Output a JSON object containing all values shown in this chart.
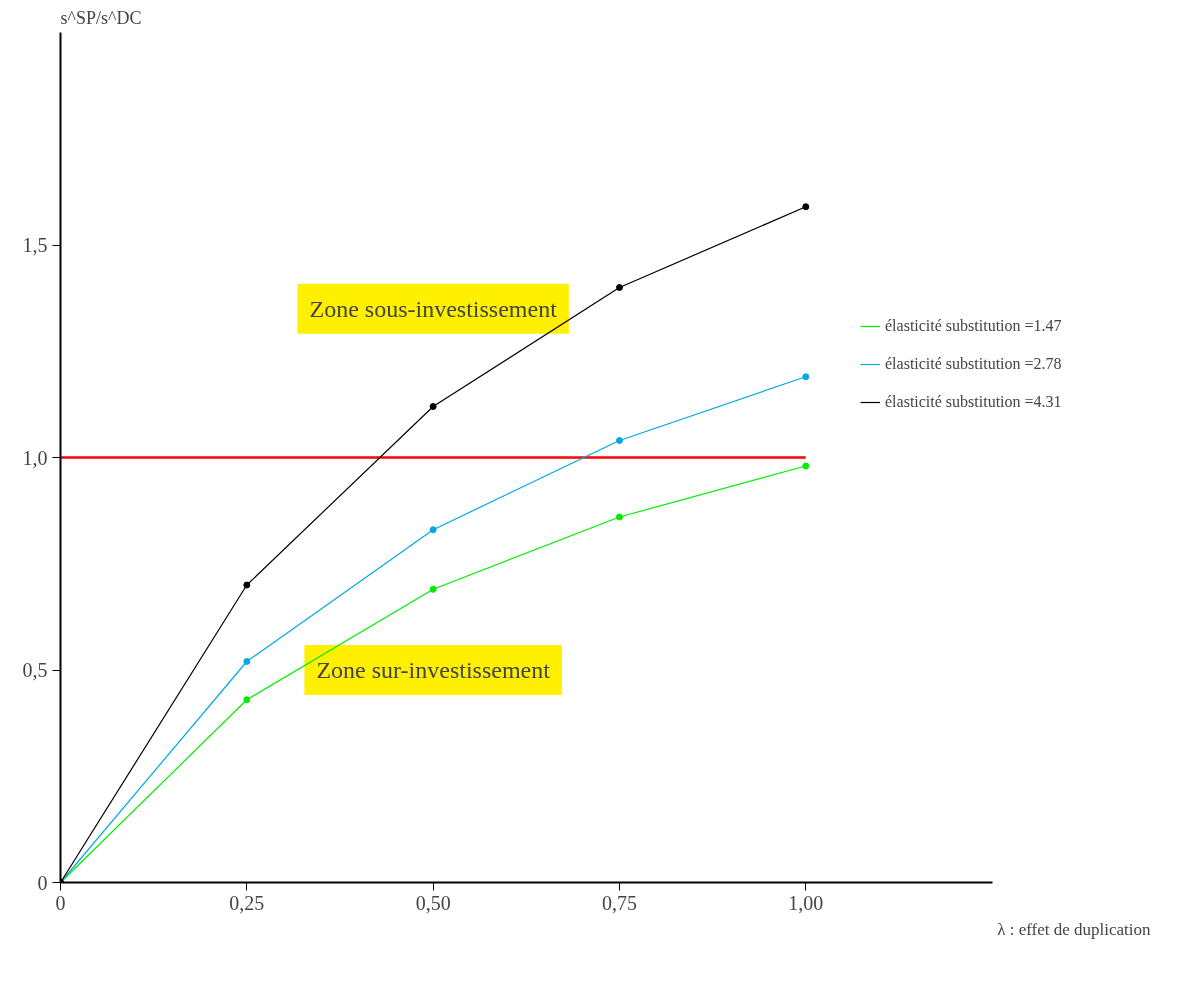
{
  "chart_data": {
    "type": "line",
    "xlabel": "λ : effet de duplication",
    "ylabel": "s^SP/s^DC",
    "x": [
      0,
      0.25,
      0.5,
      0.75,
      1.0
    ],
    "series": [
      {
        "name": "élasticité substitution =1.47",
        "color": "#00ee00",
        "values": [
          0,
          0.43,
          0.69,
          0.86,
          0.98
        ]
      },
      {
        "name": "élasticité substitution =2.78",
        "color": "#00a8e8",
        "values": [
          0,
          0.52,
          0.83,
          1.04,
          1.19
        ]
      },
      {
        "name": "élasticité substitution =4.31",
        "color": "#000000",
        "values": [
          0,
          0.7,
          1.12,
          1.4,
          1.59
        ]
      }
    ],
    "xlim": [
      0,
      1.25
    ],
    "ylim": [
      0,
      2.0
    ],
    "xticks": [
      0,
      {
        "value": 0.25,
        "label": "0,25"
      },
      {
        "value": 0.5,
        "label": "0,50"
      },
      {
        "value": 0.75,
        "label": "0,75"
      },
      {
        "value": 1.0,
        "label": "1,00"
      }
    ],
    "yticks": [
      0,
      {
        "value": 0.5,
        "label": "0,5"
      },
      {
        "value": 1.0,
        "label": "1,0"
      },
      {
        "value": 1.5,
        "label": "1,5"
      }
    ],
    "ref_lines": [
      {
        "axis": "y",
        "value": 1.0,
        "color": "#ff0000"
      }
    ],
    "annotations": [
      "Zone sous-investissement",
      "Zone sur-investissement"
    ],
    "marker": "circle",
    "line_style": "solid",
    "grid": false,
    "legend": "right"
  }
}
